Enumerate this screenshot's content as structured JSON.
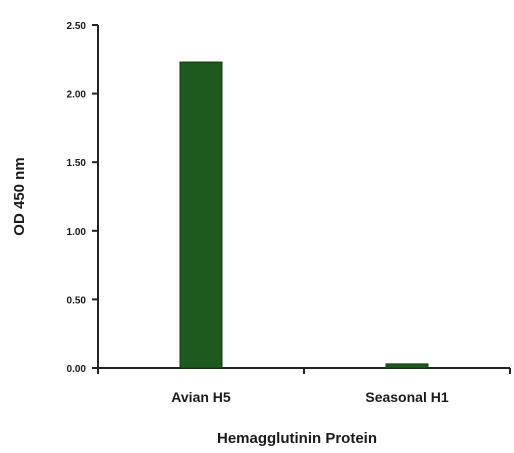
{
  "chart_data": {
    "type": "bar",
    "categories": [
      "Avian H5",
      "Seasonal H1"
    ],
    "series": [
      {
        "values": [
          2.23,
          0.03
        ],
        "color": "#1e5a1e"
      }
    ],
    "title": "",
    "xlabel": "Hemagglutinin Protein",
    "ylabel": "OD 450 nm",
    "ylim": [
      0,
      2.5
    ],
    "yticks": [
      "0.00",
      "0.50",
      "1.00",
      "1.50",
      "2.00",
      "2.50"
    ],
    "grid": false,
    "legend": "none"
  }
}
